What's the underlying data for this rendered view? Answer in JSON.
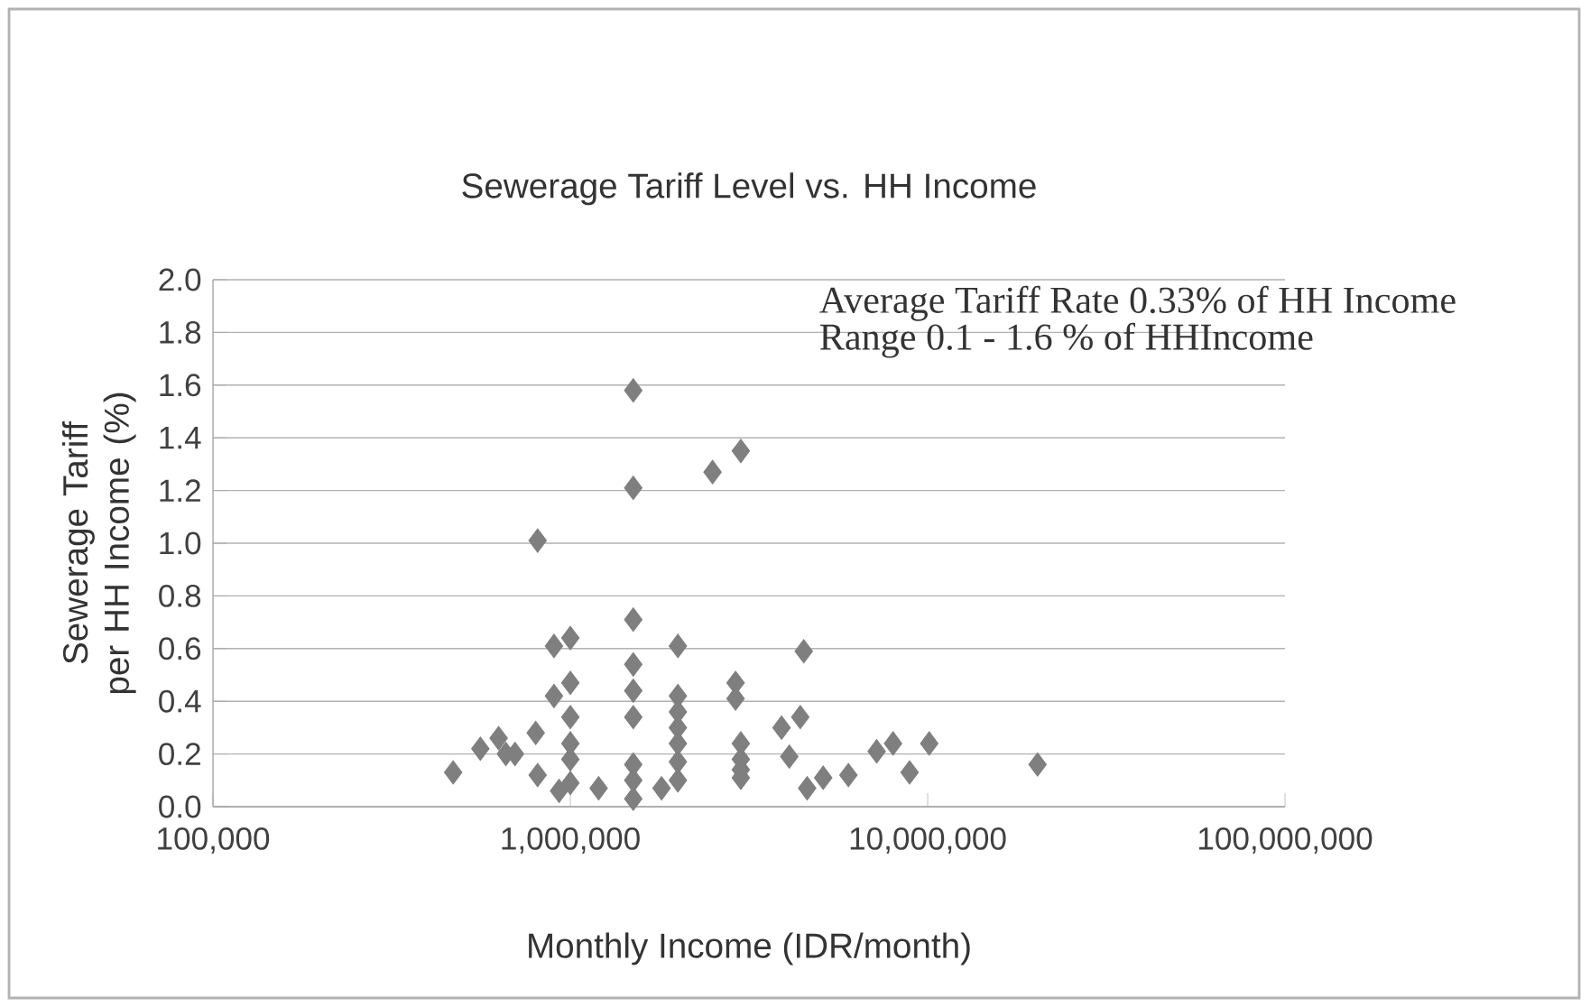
{
  "chart_data": {
    "type": "scatter",
    "title": "Sewerage Tariff Level vs. HH Income",
    "xlabel": "Monthly Income (IDR/month)",
    "ylabel": "Sewerage Tariff per HH Income (%)",
    "annotations": [
      "Average Tariff Rate 0.33% of HH Income",
      "Range  0.1 - 1.6 % of HHIncome"
    ],
    "log": "x",
    "grid": "y",
    "marker": "diamond",
    "xlim": [
      100000,
      100000000
    ],
    "xticks": [
      {
        "value": 100000,
        "label": "100,000"
      },
      {
        "value": 1000000,
        "label": "1,000,000"
      },
      {
        "value": 10000000,
        "label": "10,000,000"
      },
      {
        "value": 100000000,
        "label": "100,000,000"
      }
    ],
    "ylim": [
      0,
      2
    ],
    "yticks": [
      {
        "value": 0,
        "label": "0.0"
      },
      {
        "value": 0.2,
        "label": "0.2"
      },
      {
        "value": 0.4,
        "label": "0.4"
      },
      {
        "value": 0.6,
        "label": "0.6"
      },
      {
        "value": 0.8,
        "label": "0.8"
      },
      {
        "value": 1,
        "label": "1.0"
      },
      {
        "value": 1.2,
        "label": "1.2"
      },
      {
        "value": 1.4,
        "label": "1.4"
      },
      {
        "value": 1.6,
        "label": "1.6"
      },
      {
        "value": 1.8,
        "label": "1.8"
      },
      {
        "value": 2,
        "label": "2.0"
      }
    ],
    "series": [
      {
        "color": "#7f7f7f",
        "x": [
          1500000,
          3000000,
          2500000,
          1500000,
          810000,
          1500000,
          1000000,
          900000,
          2000000,
          4500000,
          1500000,
          1000000,
          900000,
          1500000,
          2000000,
          2000000,
          2900000,
          2900000,
          1000000,
          1500000,
          2000000,
          2000000,
          4400000,
          3900000,
          800000,
          630000,
          660000,
          560000,
          700000,
          1000000,
          1000000,
          470000,
          810000,
          1000000,
          930000,
          1200000,
          1500000,
          1500000,
          1500000,
          1800000,
          2000000,
          2000000,
          3000000,
          3000000,
          3000000,
          3000000,
          4100000,
          4600000,
          5100000,
          6000000,
          7200000,
          8000000,
          10100000,
          8900000,
          20300000
        ],
        "values": [
          1.58,
          1.35,
          1.27,
          1.21,
          1.01,
          0.71,
          0.64,
          0.61,
          0.61,
          0.59,
          0.54,
          0.47,
          0.42,
          0.44,
          0.42,
          0.36,
          0.47,
          0.41,
          0.34,
          0.34,
          0.3,
          0.24,
          0.34,
          0.3,
          0.28,
          0.26,
          0.2,
          0.22,
          0.2,
          0.24,
          0.18,
          0.13,
          0.12,
          0.09,
          0.06,
          0.07,
          0.16,
          0.1,
          0.03,
          0.07,
          0.1,
          0.17,
          0.24,
          0.18,
          0.14,
          0.11,
          0.19,
          0.07,
          0.11,
          0.12,
          0.21,
          0.24,
          0.24,
          0.13,
          0.16
        ]
      }
    ]
  }
}
